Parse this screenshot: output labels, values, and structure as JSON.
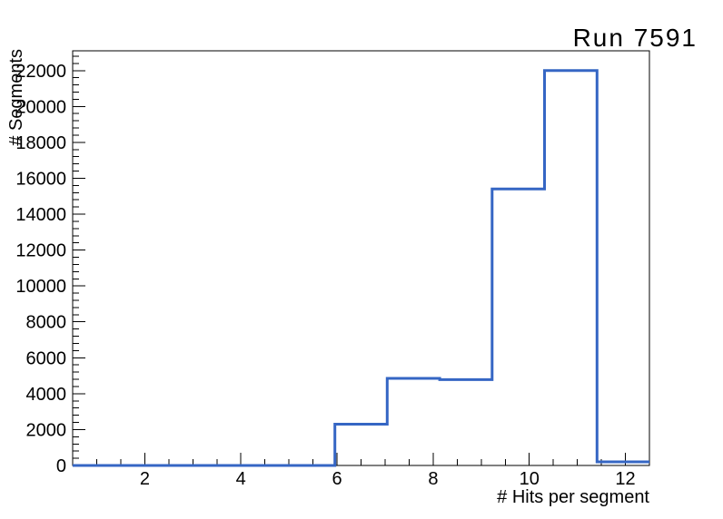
{
  "page": {
    "background_color": "#ffffff"
  },
  "chart_data": {
    "type": "bar",
    "style": "step-histogram-outline",
    "title": "Run 7591",
    "xlabel": "# Hits per segment",
    "ylabel": "# Segments",
    "xlim": [
      0.5,
      12.5
    ],
    "ylim": [
      0,
      23100
    ],
    "grid": false,
    "legend": null,
    "x_major_ticks": [
      2,
      4,
      6,
      8,
      10,
      12
    ],
    "x_tick_labels": [
      "2",
      "4",
      "6",
      "8",
      "10",
      "12"
    ],
    "x_minor_tick_step": 0.5,
    "y_major_ticks": [
      0,
      2000,
      4000,
      6000,
      8000,
      10000,
      12000,
      14000,
      16000,
      18000,
      20000,
      22000
    ],
    "y_tick_labels": [
      "0",
      "2000",
      "4000",
      "6000",
      "8000",
      "10000",
      "12000",
      "14000",
      "16000",
      "18000",
      "20000",
      "22000"
    ],
    "y_minor_tick_step": 400,
    "bin_edges": [
      0.5,
      1.591,
      2.682,
      3.773,
      4.864,
      5.955,
      7.045,
      8.136,
      9.227,
      10.318,
      11.409,
      12.5
    ],
    "values": [
      0,
      0,
      0,
      0,
      0,
      2300,
      4850,
      4780,
      15400,
      22000,
      200
    ],
    "line_color": "#3566c4",
    "line_width": 3,
    "axis_color": "#000000",
    "text_color": "#000000"
  }
}
